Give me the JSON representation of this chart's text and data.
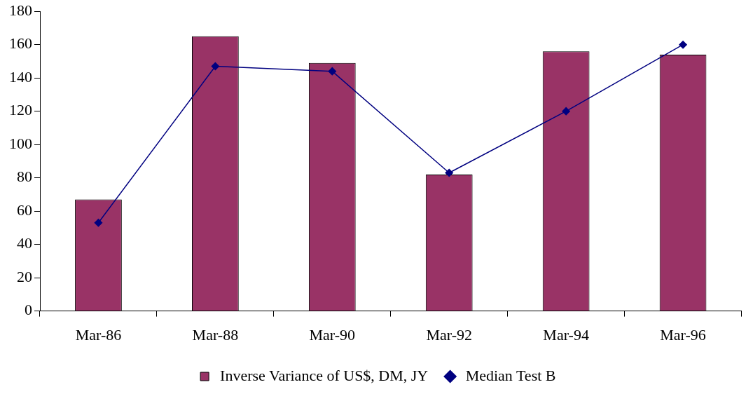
{
  "chart_data": {
    "type": "bar",
    "categories": [
      "Mar-86",
      "Mar-88",
      "Mar-90",
      "Mar-92",
      "Mar-94",
      "Mar-96"
    ],
    "series": [
      {
        "name": "Inverse Variance of US$, DM, JY",
        "color": "#993366",
        "values": [
          67,
          165,
          149,
          82,
          156,
          154
        ]
      },
      {
        "name": "Median Test B",
        "type": "line",
        "color": "#000080",
        "values": [
          53,
          147,
          144,
          83,
          120,
          160
        ],
        "marker": "diamond"
      }
    ],
    "ylim": [
      0,
      180
    ],
    "yticks": [
      0,
      20,
      40,
      60,
      80,
      100,
      120,
      140,
      160,
      180
    ],
    "grid": false,
    "legend": "bottom"
  }
}
